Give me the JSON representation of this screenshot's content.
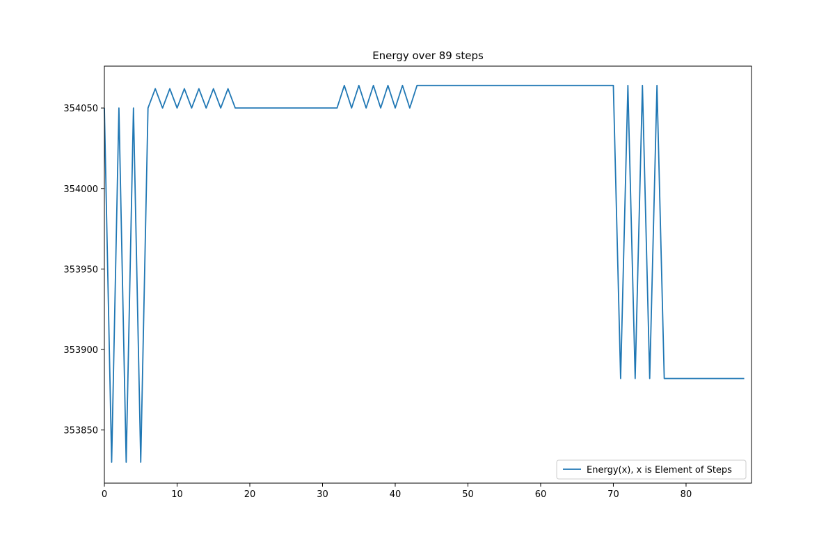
{
  "chart_data": {
    "type": "line",
    "title": "Energy over  89 steps",
    "xlabel": "",
    "ylabel": "",
    "xlim": [
      0,
      89
    ],
    "ylim": [
      353817,
      354076
    ],
    "xticks": [
      0,
      10,
      20,
      30,
      40,
      50,
      60,
      70,
      80
    ],
    "yticks": [
      353850,
      353900,
      353950,
      354000,
      354050
    ],
    "grid": false,
    "legend_position": "lower-right",
    "series": [
      {
        "name": "Energy(x), x is Element of Steps",
        "color": "#1f77b4",
        "x": [
          0,
          1,
          2,
          3,
          4,
          5,
          6,
          7,
          8,
          9,
          10,
          11,
          12,
          13,
          14,
          15,
          16,
          17,
          18,
          19,
          20,
          21,
          22,
          23,
          24,
          25,
          26,
          27,
          28,
          29,
          30,
          31,
          32,
          33,
          34,
          35,
          36,
          37,
          38,
          39,
          40,
          41,
          42,
          43,
          44,
          45,
          46,
          47,
          48,
          49,
          50,
          51,
          52,
          53,
          54,
          55,
          56,
          57,
          58,
          59,
          60,
          61,
          62,
          63,
          64,
          65,
          66,
          67,
          68,
          69,
          70,
          71,
          72,
          73,
          74,
          75,
          76,
          77,
          78,
          79,
          80,
          81,
          82,
          83,
          84,
          85,
          86,
          87,
          88
        ],
        "y": [
          354050,
          353830,
          354050,
          353830,
          354050,
          353830,
          354050,
          354062,
          354050,
          354062,
          354050,
          354062,
          354050,
          354062,
          354050,
          354062,
          354050,
          354062,
          354050,
          354050,
          354050,
          354050,
          354050,
          354050,
          354050,
          354050,
          354050,
          354050,
          354050,
          354050,
          354050,
          354050,
          354050,
          354064,
          354050,
          354064,
          354050,
          354064,
          354050,
          354064,
          354050,
          354064,
          354050,
          354064,
          354064,
          354064,
          354064,
          354064,
          354064,
          354064,
          354064,
          354064,
          354064,
          354064,
          354064,
          354064,
          354064,
          354064,
          354064,
          354064,
          354064,
          354064,
          354064,
          354064,
          354064,
          354064,
          354064,
          354064,
          354064,
          354064,
          354064,
          353882,
          354064,
          353882,
          354064,
          353882,
          354064,
          353882,
          353882,
          353882,
          353882,
          353882,
          353882,
          353882,
          353882,
          353882,
          353882,
          353882,
          353882
        ]
      }
    ]
  }
}
